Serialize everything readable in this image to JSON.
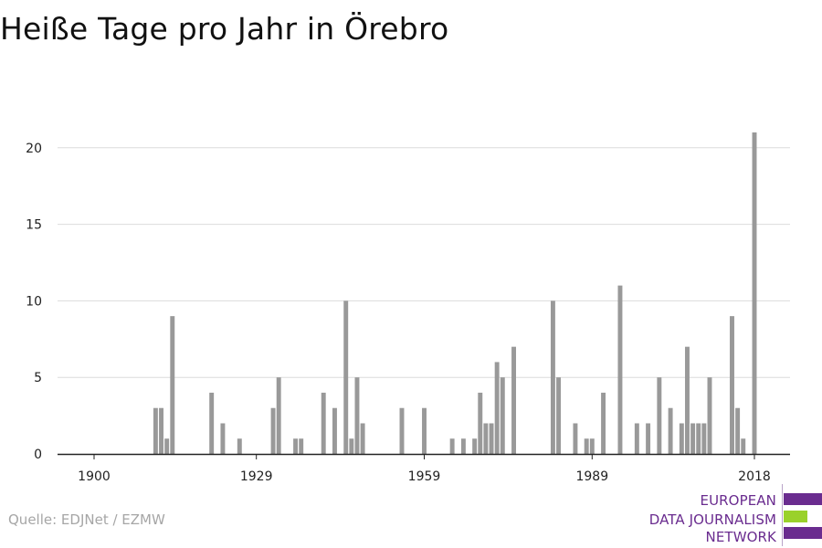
{
  "chart_data": {
    "type": "bar",
    "title": "Heiße Tage pro Jahr in Örebro",
    "xlabel": "",
    "ylabel": "",
    "x_ticks": [
      "1900",
      "1929",
      "1959",
      "1989",
      "2018"
    ],
    "y_ticks": [
      0,
      5,
      10,
      15,
      20
    ],
    "ylim": [
      0,
      21
    ],
    "xlim": [
      1900,
      2018
    ],
    "grid": true,
    "bar_color": "#999999",
    "points": [
      {
        "x": 1911,
        "y": 3
      },
      {
        "x": 1912,
        "y": 3
      },
      {
        "x": 1913,
        "y": 1
      },
      {
        "x": 1914,
        "y": 9
      },
      {
        "x": 1921,
        "y": 4
      },
      {
        "x": 1923,
        "y": 2
      },
      {
        "x": 1926,
        "y": 1
      },
      {
        "x": 1932,
        "y": 3
      },
      {
        "x": 1933,
        "y": 5
      },
      {
        "x": 1936,
        "y": 1
      },
      {
        "x": 1937,
        "y": 1
      },
      {
        "x": 1941,
        "y": 4
      },
      {
        "x": 1943,
        "y": 3
      },
      {
        "x": 1945,
        "y": 10
      },
      {
        "x": 1946,
        "y": 1
      },
      {
        "x": 1947,
        "y": 5
      },
      {
        "x": 1948,
        "y": 2
      },
      {
        "x": 1955,
        "y": 3
      },
      {
        "x": 1959,
        "y": 3
      },
      {
        "x": 1964,
        "y": 1
      },
      {
        "x": 1966,
        "y": 1
      },
      {
        "x": 1968,
        "y": 1
      },
      {
        "x": 1969,
        "y": 4
      },
      {
        "x": 1970,
        "y": 2
      },
      {
        "x": 1971,
        "y": 2
      },
      {
        "x": 1972,
        "y": 6
      },
      {
        "x": 1973,
        "y": 5
      },
      {
        "x": 1975,
        "y": 7
      },
      {
        "x": 1982,
        "y": 10
      },
      {
        "x": 1983,
        "y": 5
      },
      {
        "x": 1986,
        "y": 2
      },
      {
        "x": 1988,
        "y": 1
      },
      {
        "x": 1989,
        "y": 1
      },
      {
        "x": 1991,
        "y": 4
      },
      {
        "x": 1994,
        "y": 11
      },
      {
        "x": 1997,
        "y": 2
      },
      {
        "x": 1999,
        "y": 2
      },
      {
        "x": 2001,
        "y": 5
      },
      {
        "x": 2003,
        "y": 3
      },
      {
        "x": 2005,
        "y": 2
      },
      {
        "x": 2006,
        "y": 7
      },
      {
        "x": 2007,
        "y": 2
      },
      {
        "x": 2008,
        "y": 2
      },
      {
        "x": 2009,
        "y": 2
      },
      {
        "x": 2010,
        "y": 5
      },
      {
        "x": 2014,
        "y": 9
      },
      {
        "x": 2015,
        "y": 3
      },
      {
        "x": 2016,
        "y": 1
      },
      {
        "x": 2018,
        "y": 21
      }
    ]
  },
  "source": "Quelle: EDJNet / EZMW",
  "logo": {
    "line1": "EUROPEAN",
    "line2": "DATA JOURNALISM",
    "line3": "NETWORK",
    "color_purple": "#6a2c8f",
    "color_green": "#9ad12b"
  }
}
